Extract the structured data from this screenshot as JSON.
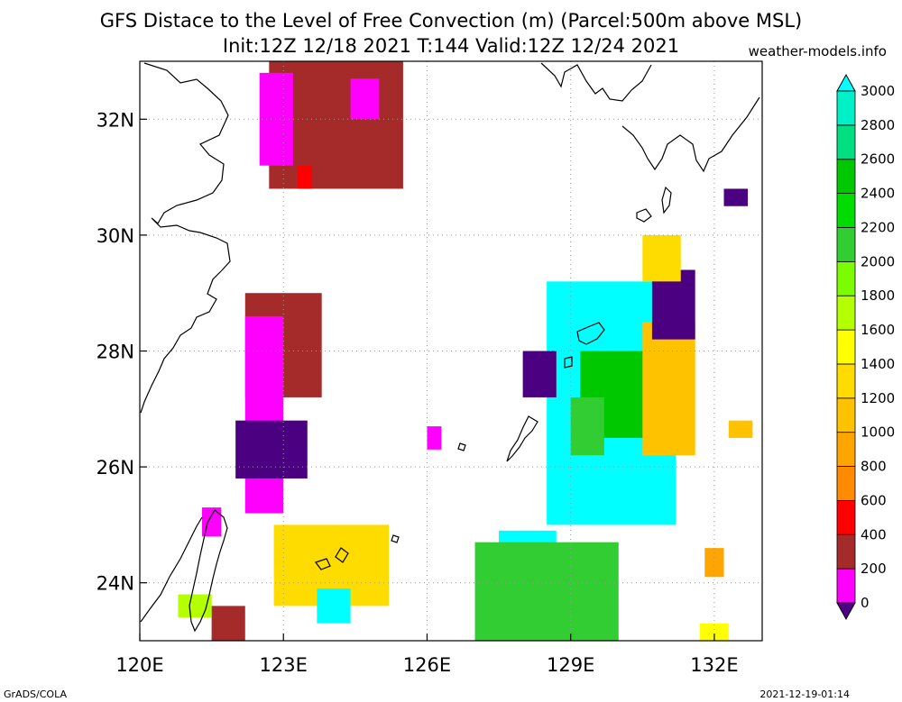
{
  "header": {
    "title_line1": "GFS Distace to the Level of Free Convection (m) (Parcel:500m above MSL)",
    "title_line2": "Init:12Z 12/18 2021 T:144 Valid:12Z 12/24 2021",
    "source": "weather-models.info"
  },
  "footer": {
    "left": "GrADS/COLA",
    "right": "2021-12-19-01:14"
  },
  "chart_data": {
    "type": "heatmap",
    "title": "GFS Distace to the Level of Free Convection (m) (Parcel:500m above MSL)",
    "subtitle": "Init:12Z 12/18 2021 T:144 Valid:12Z 12/24 2021",
    "xlabel": "",
    "ylabel": "",
    "xlim": [
      120,
      133
    ],
    "ylim": [
      23,
      33
    ],
    "grid": true,
    "x_ticks": [
      {
        "value": 120,
        "label": "120E"
      },
      {
        "value": 123,
        "label": "123E"
      },
      {
        "value": 126,
        "label": "126E"
      },
      {
        "value": 129,
        "label": "129E"
      },
      {
        "value": 132,
        "label": "132E"
      }
    ],
    "y_ticks": [
      {
        "value": 24,
        "label": "24N"
      },
      {
        "value": 26,
        "label": "26N"
      },
      {
        "value": 28,
        "label": "28N"
      },
      {
        "value": 30,
        "label": "30N"
      },
      {
        "value": 32,
        "label": "32N"
      }
    ],
    "colorbar": {
      "labels": [
        "0",
        "200",
        "400",
        "600",
        "800",
        "1000",
        "1200",
        "1400",
        "1600",
        "1800",
        "2000",
        "2200",
        "2400",
        "2600",
        "2800",
        "3000"
      ],
      "bins": [
        {
          "min": -200,
          "max": 0,
          "color": "#4b0082"
        },
        {
          "min": 0,
          "max": 200,
          "color": "#ff00ff"
        },
        {
          "min": 200,
          "max": 400,
          "color": "#a52a2a"
        },
        {
          "min": 400,
          "max": 600,
          "color": "#ff0000"
        },
        {
          "min": 600,
          "max": 800,
          "color": "#ff8c00"
        },
        {
          "min": 800,
          "max": 1000,
          "color": "#ffa500"
        },
        {
          "min": 1000,
          "max": 1200,
          "color": "#ffc200"
        },
        {
          "min": 1200,
          "max": 1400,
          "color": "#ffdc00"
        },
        {
          "min": 1400,
          "max": 1600,
          "color": "#ffff00"
        },
        {
          "min": 1600,
          "max": 1800,
          "color": "#b4ff00"
        },
        {
          "min": 1800,
          "max": 2000,
          "color": "#7cfc00"
        },
        {
          "min": 2000,
          "max": 2200,
          "color": "#32cd32"
        },
        {
          "min": 2200,
          "max": 2400,
          "color": "#00dc00"
        },
        {
          "min": 2400,
          "max": 2600,
          "color": "#00c800"
        },
        {
          "min": 2600,
          "max": 2800,
          "color": "#00e080"
        },
        {
          "min": 2800,
          "max": 3000,
          "color": "#00f0c8"
        },
        {
          "min": 3000,
          "max": 3200,
          "color": "#00ffff"
        }
      ]
    },
    "regions": [
      {
        "lon": [
          122.7,
          125.5
        ],
        "lat": [
          30.8,
          33.0
        ],
        "value": 300
      },
      {
        "lon": [
          122.5,
          123.2
        ],
        "lat": [
          31.2,
          32.8
        ],
        "value": 100
      },
      {
        "lon": [
          123.3,
          123.6
        ],
        "lat": [
          30.8,
          31.2
        ],
        "value": 500
      },
      {
        "lon": [
          124.4,
          125.0
        ],
        "lat": [
          32.0,
          32.7
        ],
        "value": 100
      },
      {
        "lon": [
          122.2,
          123.8
        ],
        "lat": [
          27.2,
          29.0
        ],
        "value": 300
      },
      {
        "lon": [
          122.2,
          123.0
        ],
        "lat": [
          25.2,
          28.6
        ],
        "value": 100
      },
      {
        "lon": [
          122.0,
          123.5
        ],
        "lat": [
          25.8,
          26.8
        ],
        "value": -100
      },
      {
        "lon": [
          121.3,
          121.7
        ],
        "lat": [
          24.8,
          25.3
        ],
        "value": 100
      },
      {
        "lon": [
          121.5,
          122.2
        ],
        "lat": [
          23.0,
          23.6
        ],
        "value": 300
      },
      {
        "lon": [
          120.8,
          121.5
        ],
        "lat": [
          23.4,
          23.8
        ],
        "value": 1700
      },
      {
        "lon": [
          122.8,
          125.2
        ],
        "lat": [
          23.6,
          25.0
        ],
        "value": 1200
      },
      {
        "lon": [
          123.7,
          124.4
        ],
        "lat": [
          23.3,
          23.9
        ],
        "value": 3000
      },
      {
        "lon": [
          126.0,
          126.3
        ],
        "lat": [
          26.3,
          26.7
        ],
        "value": 100
      },
      {
        "lon": [
          127.5,
          128.7
        ],
        "lat": [
          24.3,
          24.9
        ],
        "value": 3000
      },
      {
        "lon": [
          128.5,
          131.2
        ],
        "lat": [
          25.0,
          29.2
        ],
        "value": 3000
      },
      {
        "lon": [
          129.2,
          130.6
        ],
        "lat": [
          26.5,
          28.0
        ],
        "value": 2400
      },
      {
        "lon": [
          129.0,
          129.7
        ],
        "lat": [
          26.2,
          27.2
        ],
        "value": 2100
      },
      {
        "lon": [
          130.5,
          131.6
        ],
        "lat": [
          26.2,
          28.5
        ],
        "value": 1000
      },
      {
        "lon": [
          130.7,
          131.6
        ],
        "lat": [
          28.2,
          29.4
        ],
        "value": -100
      },
      {
        "lon": [
          130.5,
          131.3
        ],
        "lat": [
          29.2,
          30.0
        ],
        "value": 1200
      },
      {
        "lon": [
          128.0,
          128.7
        ],
        "lat": [
          27.2,
          28.0
        ],
        "value": -100
      },
      {
        "lon": [
          127.0,
          130.0
        ],
        "lat": [
          23.0,
          24.7
        ],
        "value": 2000
      },
      {
        "lon": [
          131.7,
          132.3
        ],
        "lat": [
          23.0,
          23.3
        ],
        "value": 1400
      },
      {
        "lon": [
          132.2,
          132.7
        ],
        "lat": [
          30.5,
          30.8
        ],
        "value": -100
      },
      {
        "lon": [
          132.3,
          132.8
        ],
        "lat": [
          26.5,
          26.8
        ],
        "value": 1000
      },
      {
        "lon": [
          131.8,
          132.2
        ],
        "lat": [
          24.1,
          24.6
        ],
        "value": 800
      }
    ]
  }
}
